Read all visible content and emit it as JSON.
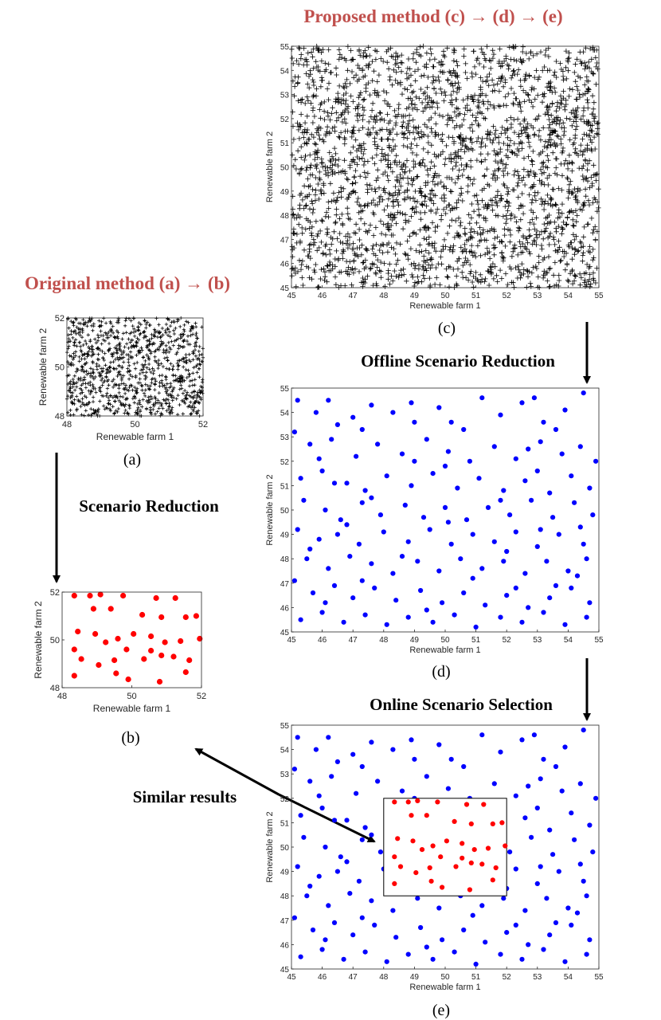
{
  "headings": {
    "proposed": "Proposed method (c) → (d) → (e)",
    "original": "Original method (a) → (b)",
    "offline": "Offline Scenario Reduction",
    "online": "Online Scenario Selection",
    "scenario_reduction": "Scenario Reduction",
    "similar": "Similar results"
  },
  "captions": {
    "a": "(a)",
    "b": "(b)",
    "c": "(c)",
    "d": "(d)",
    "e": "(e)"
  },
  "colors": {
    "heading_red": "#c0504d",
    "scenario_blue": "#0000ff",
    "scenario_red": "#ff0000",
    "marker_black": "#000000"
  },
  "chart_data": [
    {
      "id": "a",
      "type": "scatter",
      "marker": "plus",
      "color": "#000000",
      "xlabel": "Renewable farm 1",
      "ylabel": "Renewable farm 2",
      "xlim": [
        48,
        52
      ],
      "ylim": [
        48,
        52
      ],
      "xticks": [
        48,
        50,
        52
      ],
      "yticks": [
        48,
        50,
        52
      ],
      "n_points": 1000
    },
    {
      "id": "b",
      "type": "scatter",
      "marker": "dot",
      "color": "#ff0000",
      "xlabel": "Renewable farm 1",
      "ylabel": "Renewable farm 2",
      "xlim": [
        48,
        52
      ],
      "ylim": [
        48,
        52
      ],
      "xticks": [
        48,
        50,
        52
      ],
      "yticks": [
        48,
        50,
        52
      ],
      "points": [
        [
          48.35,
          51.85
        ],
        [
          48.8,
          51.85
        ],
        [
          49.1,
          51.9
        ],
        [
          49.75,
          51.85
        ],
        [
          50.7,
          51.75
        ],
        [
          51.25,
          51.75
        ],
        [
          48.9,
          51.3
        ],
        [
          49.4,
          51.3
        ],
        [
          50.3,
          51.05
        ],
        [
          50.85,
          50.95
        ],
        [
          51.55,
          50.95
        ],
        [
          51.85,
          51.0
        ],
        [
          48.45,
          50.35
        ],
        [
          48.95,
          50.25
        ],
        [
          49.6,
          50.05
        ],
        [
          50.05,
          50.25
        ],
        [
          50.55,
          50.15
        ],
        [
          50.95,
          49.9
        ],
        [
          51.4,
          49.95
        ],
        [
          51.95,
          50.05
        ],
        [
          48.35,
          49.6
        ],
        [
          49.25,
          49.9
        ],
        [
          49.85,
          49.6
        ],
        [
          50.55,
          49.55
        ],
        [
          48.55,
          49.2
        ],
        [
          49.05,
          48.95
        ],
        [
          49.5,
          49.15
        ],
        [
          50.35,
          49.2
        ],
        [
          50.85,
          49.35
        ],
        [
          51.2,
          49.3
        ],
        [
          51.65,
          49.15
        ],
        [
          48.35,
          48.5
        ],
        [
          49.55,
          48.6
        ],
        [
          49.9,
          48.35
        ],
        [
          50.8,
          48.25
        ],
        [
          51.55,
          48.65
        ]
      ]
    },
    {
      "id": "c",
      "type": "scatter",
      "marker": "plus",
      "color": "#000000",
      "xlabel": "Renewable farm 1",
      "ylabel": "Renewable farm 2",
      "xlim": [
        45,
        55
      ],
      "ylim": [
        45,
        55
      ],
      "xticks": [
        45,
        46,
        47,
        48,
        49,
        50,
        51,
        52,
        53,
        54,
        55
      ],
      "yticks": [
        45,
        46,
        47,
        48,
        49,
        50,
        51,
        52,
        53,
        54,
        55
      ],
      "n_points": 2500
    },
    {
      "id": "d",
      "type": "scatter",
      "marker": "dot",
      "color": "#0000ff",
      "xlabel": "Renewable farm 1",
      "ylabel": "Renewable farm 2",
      "xlim": [
        45,
        55
      ],
      "ylim": [
        45,
        55
      ],
      "xticks": [
        45,
        46,
        47,
        48,
        49,
        50,
        51,
        52,
        53,
        54,
        55
      ],
      "yticks": [
        45,
        46,
        47,
        48,
        49,
        50,
        51,
        52,
        53,
        54,
        55
      ],
      "points": [
        [
          45.2,
          54.5
        ],
        [
          45.8,
          54.0
        ],
        [
          46.5,
          53.5
        ],
        [
          47.0,
          53.8
        ],
        [
          47.6,
          54.3
        ],
        [
          48.3,
          54.0
        ],
        [
          49.0,
          53.6
        ],
        [
          49.8,
          54.2
        ],
        [
          50.6,
          53.3
        ],
        [
          51.2,
          54.6
        ],
        [
          51.8,
          53.9
        ],
        [
          52.5,
          54.4
        ],
        [
          53.2,
          53.6
        ],
        [
          53.9,
          54.1
        ],
        [
          54.5,
          54.8
        ],
        [
          45.1,
          53.2
        ],
        [
          45.6,
          52.7
        ],
        [
          46.3,
          52.9
        ],
        [
          47.1,
          52.2
        ],
        [
          47.8,
          52.7
        ],
        [
          48.6,
          52.3
        ],
        [
          49.4,
          52.9
        ],
        [
          50.1,
          52.4
        ],
        [
          50.8,
          52.0
        ],
        [
          51.6,
          52.6
        ],
        [
          52.3,
          52.1
        ],
        [
          53.1,
          52.8
        ],
        [
          53.8,
          52.3
        ],
        [
          54.4,
          52.6
        ],
        [
          54.9,
          52.0
        ],
        [
          45.3,
          51.3
        ],
        [
          46.0,
          51.6
        ],
        [
          46.8,
          51.1
        ],
        [
          47.4,
          50.8
        ],
        [
          48.1,
          51.4
        ],
        [
          48.9,
          51.0
        ],
        [
          49.6,
          51.5
        ],
        [
          50.4,
          50.9
        ],
        [
          51.1,
          51.3
        ],
        [
          51.9,
          50.8
        ],
        [
          52.6,
          51.2
        ],
        [
          53.4,
          50.7
        ],
        [
          54.1,
          51.4
        ],
        [
          54.7,
          50.9
        ],
        [
          45.4,
          50.4
        ],
        [
          46.1,
          50.0
        ],
        [
          46.6,
          49.6
        ],
        [
          47.3,
          50.3
        ],
        [
          47.9,
          49.8
        ],
        [
          48.7,
          50.2
        ],
        [
          49.3,
          49.7
        ],
        [
          50.0,
          50.1
        ],
        [
          50.7,
          49.6
        ],
        [
          51.4,
          50.1
        ],
        [
          52.1,
          49.8
        ],
        [
          52.8,
          50.4
        ],
        [
          53.5,
          49.7
        ],
        [
          54.2,
          50.3
        ],
        [
          54.8,
          49.8
        ],
        [
          45.2,
          49.2
        ],
        [
          45.9,
          48.8
        ],
        [
          46.5,
          49.0
        ],
        [
          47.2,
          48.6
        ],
        [
          48.0,
          49.1
        ],
        [
          48.8,
          48.7
        ],
        [
          49.5,
          49.2
        ],
        [
          50.2,
          48.6
        ],
        [
          50.9,
          49.0
        ],
        [
          51.6,
          48.7
        ],
        [
          52.3,
          49.1
        ],
        [
          53.0,
          48.5
        ],
        [
          53.7,
          49.0
        ],
        [
          54.5,
          48.6
        ],
        [
          45.5,
          48.0
        ],
        [
          46.2,
          47.6
        ],
        [
          46.9,
          48.1
        ],
        [
          47.6,
          47.8
        ],
        [
          48.3,
          47.4
        ],
        [
          49.1,
          47.9
        ],
        [
          49.8,
          47.5
        ],
        [
          50.5,
          48.0
        ],
        [
          51.2,
          47.6
        ],
        [
          51.9,
          47.9
        ],
        [
          52.6,
          47.4
        ],
        [
          53.3,
          47.9
        ],
        [
          54.0,
          47.5
        ],
        [
          54.6,
          48.0
        ],
        [
          45.1,
          47.1
        ],
        [
          45.7,
          46.6
        ],
        [
          46.4,
          46.9
        ],
        [
          47.0,
          46.4
        ],
        [
          47.7,
          46.8
        ],
        [
          48.4,
          46.3
        ],
        [
          49.2,
          46.7
        ],
        [
          49.9,
          46.2
        ],
        [
          50.6,
          46.6
        ],
        [
          51.3,
          46.1
        ],
        [
          52.0,
          46.5
        ],
        [
          52.7,
          46.0
        ],
        [
          53.4,
          46.4
        ],
        [
          54.1,
          46.8
        ],
        [
          54.7,
          46.2
        ],
        [
          45.3,
          45.5
        ],
        [
          46.0,
          45.8
        ],
        [
          46.7,
          45.4
        ],
        [
          47.4,
          45.7
        ],
        [
          48.1,
          45.3
        ],
        [
          48.8,
          45.6
        ],
        [
          49.6,
          45.4
        ],
        [
          50.3,
          45.7
        ],
        [
          51.0,
          45.2
        ],
        [
          51.8,
          45.6
        ],
        [
          52.5,
          45.4
        ],
        [
          53.2,
          45.8
        ],
        [
          53.9,
          45.3
        ],
        [
          54.6,
          45.6
        ],
        [
          46.2,
          54.5
        ],
        [
          48.9,
          54.4
        ],
        [
          52.9,
          54.6
        ],
        [
          47.3,
          53.3
        ],
        [
          50.2,
          53.6
        ],
        [
          53.6,
          53.3
        ],
        [
          45.9,
          52.1
        ],
        [
          49.0,
          52.0
        ],
        [
          52.7,
          52.5
        ],
        [
          46.4,
          51.1
        ],
        [
          50.0,
          51.8
        ],
        [
          53.0,
          51.6
        ],
        [
          47.6,
          50.5
        ],
        [
          51.8,
          50.4
        ],
        [
          54.4,
          49.3
        ],
        [
          46.8,
          49.4
        ],
        [
          50.1,
          49.5
        ],
        [
          53.1,
          49.2
        ],
        [
          45.6,
          48.4
        ],
        [
          48.6,
          48.1
        ],
        [
          52.0,
          48.3
        ],
        [
          47.3,
          47.1
        ],
        [
          50.9,
          47.2
        ],
        [
          53.6,
          46.9
        ],
        [
          46.1,
          46.2
        ],
        [
          49.4,
          45.9
        ],
        [
          52.3,
          46.8
        ],
        [
          54.3,
          47.3
        ]
      ]
    },
    {
      "id": "e",
      "type": "scatter",
      "marker": "dot",
      "colors": [
        "#0000ff",
        "#ff0000"
      ],
      "xlabel": "Renewable farm 1",
      "ylabel": "Renewable farm 2",
      "xlim": [
        45,
        55
      ],
      "ylim": [
        45,
        55
      ],
      "xticks": [
        45,
        46,
        47,
        48,
        49,
        50,
        51,
        52,
        53,
        54,
        55
      ],
      "yticks": [
        45,
        46,
        47,
        48,
        49,
        50,
        51,
        52,
        53,
        54,
        55
      ],
      "highlight_box": {
        "x": [
          48,
          52
        ],
        "y": [
          48,
          52
        ]
      },
      "blue_points_source": "d",
      "red_points_source": "b"
    }
  ]
}
